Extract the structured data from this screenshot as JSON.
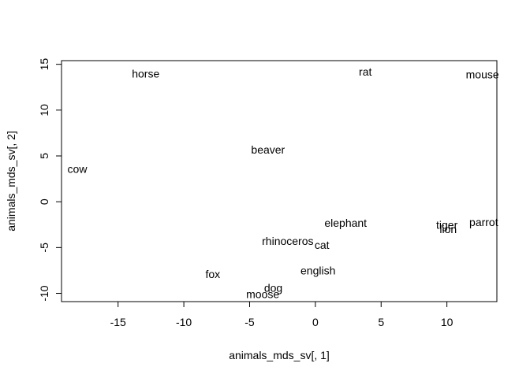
{
  "chart_data": {
    "type": "scatter",
    "title": "",
    "xlabel": "animals_mds_sv[, 1]",
    "ylabel": "animals_mds_sv[, 2]",
    "xlim": [
      -19.3,
      13.8
    ],
    "ylim": [
      -10.9,
      15.4
    ],
    "x_ticks": [
      -15,
      -10,
      -5,
      0,
      5,
      10
    ],
    "x_tick_labels": [
      "-15",
      "-10",
      "-5",
      "0",
      "5",
      "10"
    ],
    "y_ticks": [
      -10,
      -5,
      0,
      5,
      10,
      15
    ],
    "y_tick_labels": [
      "-10",
      "-5",
      "0",
      "5",
      "10",
      "15"
    ],
    "grid": false,
    "points": [
      {
        "label": "horse",
        "x": -12.9,
        "y": 14.0
      },
      {
        "label": "rat",
        "x": 3.8,
        "y": 14.2
      },
      {
        "label": "mouse",
        "x": 12.7,
        "y": 13.9
      },
      {
        "label": "beaver",
        "x": -3.6,
        "y": 5.7
      },
      {
        "label": "cow",
        "x": -18.1,
        "y": 3.6
      },
      {
        "label": "elephant",
        "x": 2.3,
        "y": -2.3
      },
      {
        "label": "tiger",
        "x": 10.0,
        "y": -2.5
      },
      {
        "label": "parrot",
        "x": 12.8,
        "y": -2.2
      },
      {
        "label": "lion",
        "x": 10.1,
        "y": -3.0
      },
      {
        "label": "rhinoceros",
        "x": -2.1,
        "y": -4.3
      },
      {
        "label": "cat",
        "x": 0.5,
        "y": -4.7
      },
      {
        "label": "english",
        "x": 0.2,
        "y": -7.5
      },
      {
        "label": "fox",
        "x": -7.8,
        "y": -7.9
      },
      {
        "label": "dog",
        "x": -3.2,
        "y": -9.4
      },
      {
        "label": "moose",
        "x": -4.0,
        "y": -10.1
      }
    ]
  }
}
